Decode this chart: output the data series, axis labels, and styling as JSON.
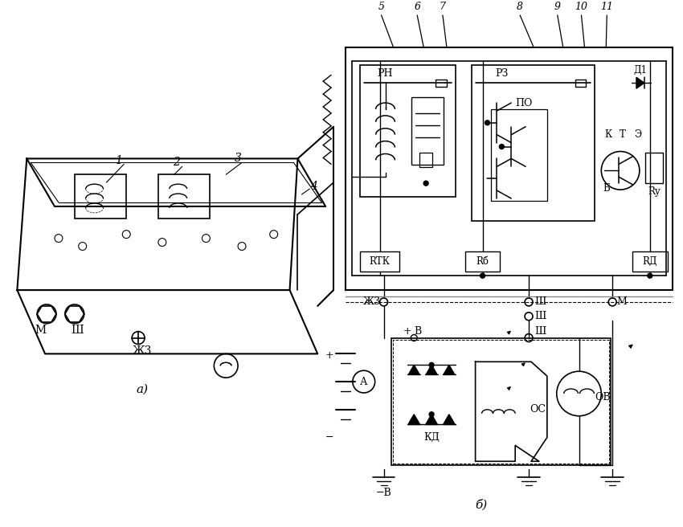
{
  "bg_color": "#ffffff",
  "lc": "#000000",
  "fig_w": 8.5,
  "fig_h": 6.56,
  "dpi": 100,
  "labels": {
    "n1": "1",
    "n2": "2",
    "n3": "3",
    "n4": "4",
    "n5": "5",
    "n6": "6",
    "n7": "7",
    "n8": "8",
    "n9": "9",
    "n10": "10",
    "n11": "11",
    "RH": "РН",
    "RZ": "РЗ",
    "PO": "ПО",
    "D1": "Д1",
    "K": "К",
    "T": "Т",
    "E": "Э",
    "Blabel": "Б",
    "Ry": "Rу",
    "RTK": "RТК",
    "Rb": "Rб",
    "Rd": "RД",
    "VZ": "Ж3",
    "Sh": "Ш",
    "M": "М",
    "plusV": "+В",
    "minusV": "−В",
    "Acircle": "А",
    "OC": "ОС",
    "OV": "ОВ",
    "KD": "КД",
    "alabel": "а)",
    "blabel": "б)"
  }
}
